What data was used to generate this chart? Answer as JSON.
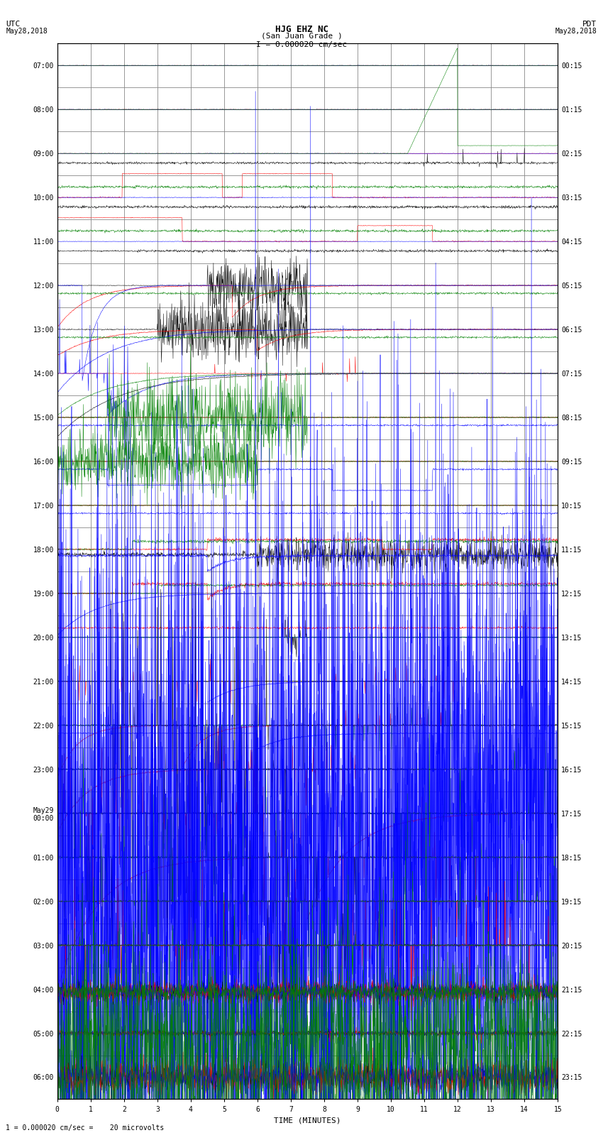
{
  "title_line1": "HJG EHZ NC",
  "title_line2": "(San Juan Grade )",
  "scale_text": "I = 0.000020 cm/sec",
  "left_label": "UTC",
  "left_date": "May28,2018",
  "right_label": "PDT",
  "right_date": "May28,2018",
  "xlabel": "TIME (MINUTES)",
  "footnote": "1 = 0.000020 cm/sec =    20 microvolts",
  "utc_labels": [
    "07:00",
    "08:00",
    "09:00",
    "10:00",
    "11:00",
    "12:00",
    "13:00",
    "14:00",
    "15:00",
    "16:00",
    "17:00",
    "18:00",
    "19:00",
    "20:00",
    "21:00",
    "22:00",
    "23:00",
    "May29\n00:00",
    "01:00",
    "02:00",
    "03:00",
    "04:00",
    "05:00",
    "06:00"
  ],
  "pdt_labels": [
    "00:15",
    "01:15",
    "02:15",
    "03:15",
    "04:15",
    "05:15",
    "06:15",
    "07:15",
    "08:15",
    "09:15",
    "10:15",
    "11:15",
    "12:15",
    "13:15",
    "14:15",
    "15:15",
    "16:15",
    "17:15",
    "18:15",
    "19:15",
    "20:15",
    "21:15",
    "22:15",
    "23:15"
  ],
  "n_rows": 24,
  "minutes_per_row": 15,
  "fig_width": 8.5,
  "fig_height": 16.13,
  "bg_color": "#ffffff",
  "grid_color": "#888888",
  "label_fontsize": 7,
  "title_fontsize": 9
}
